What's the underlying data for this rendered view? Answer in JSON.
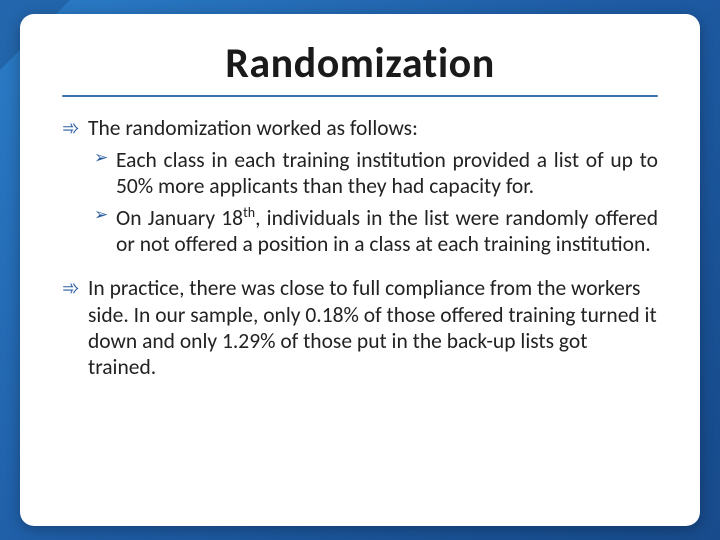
{
  "slide": {
    "background_gradient": [
      "#2b7cc7",
      "#1e5ba3",
      "#164a8a"
    ],
    "corner_accent_color": "#1a4d8f",
    "card_bg": "#ffffff",
    "rule_color": "#3a6fb0",
    "title": "Randomization",
    "title_color": "#1a1a1a",
    "title_fontsize": 42,
    "body_fontsize": 21.5,
    "bullet_color": "#2a5d9f",
    "bullets": [
      {
        "level": 1,
        "marker": "➾",
        "text": "The randomization worked as follows:"
      },
      {
        "level": 2,
        "marker": "➢",
        "text": "Each class in each training institution provided a list of up to 50% more applicants than they had capacity for."
      },
      {
        "level": 2,
        "marker": "➢",
        "text_html": "On January 18<sup>th</sup>, individuals in the list were randomly offered or not offered a position in a class at each training institution."
      },
      {
        "level": 1,
        "marker": "➾",
        "text": "In practice, there was close to full compliance from the workers side. In our sample, only 0.18% of those offered training turned it down and only 1.29% of those put in the back-up lists got trained."
      }
    ]
  }
}
